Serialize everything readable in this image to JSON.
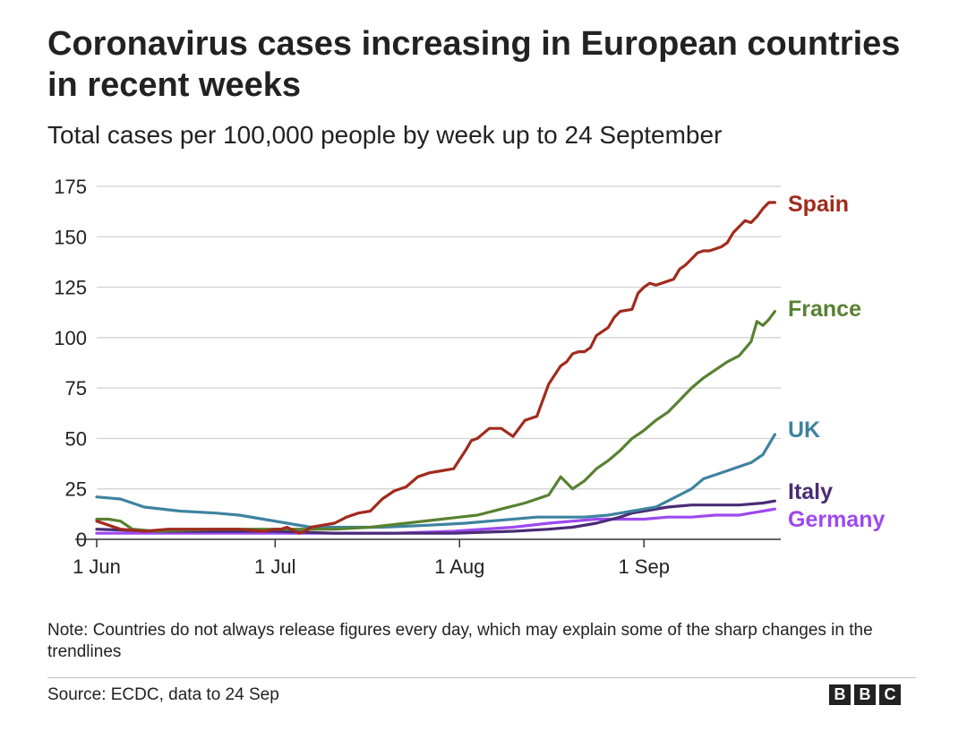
{
  "header": {
    "title": "Coronavirus cases increasing in European countries in recent weeks",
    "subtitle": "Total cases per 100,000 people by week up to 24 September"
  },
  "footer": {
    "note": "Note: Countries do not always release figures every day, which may explain some of the sharp changes in the trendlines",
    "source": "Source: ECDC, data to 24 Sep",
    "logo_letters": [
      "B",
      "B",
      "C"
    ]
  },
  "chart_data": {
    "type": "line",
    "title": "Coronavirus cases increasing in European countries in recent weeks",
    "subtitle": "Total cases per 100,000 people by week up to 24 September",
    "xlabel": "",
    "ylabel": "",
    "x_unit": "day of year 2020 (1 Jun = 0)",
    "xlim": [
      0,
      115
    ],
    "ylim": [
      0,
      175
    ],
    "yticks": [
      0,
      25,
      50,
      75,
      100,
      125,
      150,
      175
    ],
    "xticks": [
      {
        "day": 0,
        "label": "1 Jun"
      },
      {
        "day": 30,
        "label": "1 Jul"
      },
      {
        "day": 61,
        "label": "1 Aug"
      },
      {
        "day": 92,
        "label": "1 Sep"
      }
    ],
    "grid": true,
    "legend": "direct labels at line ends (right)",
    "series": [
      {
        "name": "Spain",
        "color": "#a12b1d",
        "x": [
          0,
          2,
          4,
          8,
          12,
          16,
          20,
          24,
          28,
          30,
          31,
          32,
          34,
          35,
          36,
          38,
          40,
          42,
          44,
          46,
          48,
          50,
          52,
          54,
          56,
          58,
          60,
          62,
          63,
          64,
          66,
          68,
          70,
          72,
          73,
          74,
          76,
          78,
          79,
          80,
          81,
          82,
          83,
          84,
          86,
          87,
          88,
          90,
          91,
          92,
          93,
          94,
          95,
          96,
          97,
          98,
          99,
          100,
          101,
          102,
          103,
          104,
          105,
          106,
          107,
          108,
          109,
          110,
          111,
          112,
          113,
          114
        ],
        "values": [
          9,
          7,
          5,
          4,
          5,
          5,
          5,
          5,
          4,
          5,
          5,
          6,
          3,
          4,
          6,
          7,
          8,
          11,
          13,
          14,
          20,
          24,
          26,
          31,
          33,
          34,
          35,
          44,
          49,
          50,
          55,
          55,
          51,
          59,
          60,
          61,
          77,
          86,
          88,
          92,
          93,
          93,
          95,
          101,
          105,
          110,
          113,
          114,
          122,
          125,
          127,
          126,
          127,
          128,
          129,
          134,
          136,
          139,
          142,
          143,
          143,
          144,
          145,
          147,
          152,
          155,
          158,
          157,
          160,
          164,
          167,
          167
        ]
      },
      {
        "name": "France",
        "color": "#588131",
        "x": [
          0,
          2,
          4,
          6,
          10,
          20,
          30,
          40,
          46,
          52,
          58,
          61,
          64,
          68,
          72,
          74,
          76,
          78,
          80,
          82,
          84,
          86,
          88,
          90,
          92,
          94,
          96,
          98,
          100,
          102,
          104,
          106,
          108,
          110,
          111,
          112,
          113,
          114
        ],
        "values": [
          10,
          10,
          9,
          5,
          4,
          5,
          5,
          5,
          6,
          8,
          10,
          11,
          12,
          15,
          18,
          20,
          22,
          31,
          25,
          29,
          35,
          39,
          44,
          50,
          54,
          59,
          63,
          69,
          75,
          80,
          84,
          88,
          91,
          98,
          108,
          106,
          109,
          113
        ]
      },
      {
        "name": "UK",
        "color": "#3e83a0",
        "x": [
          0,
          4,
          8,
          14,
          20,
          24,
          28,
          32,
          36,
          40,
          48,
          56,
          62,
          66,
          70,
          74,
          78,
          82,
          86,
          88,
          90,
          92,
          94,
          96,
          98,
          100,
          102,
          104,
          106,
          108,
          110,
          112,
          114
        ],
        "values": [
          21,
          20,
          16,
          14,
          13,
          12,
          10,
          8,
          6,
          6,
          6,
          7,
          8,
          9,
          10,
          11,
          11,
          11,
          12,
          13,
          14,
          15,
          16,
          19,
          22,
          25,
          30,
          32,
          34,
          36,
          38,
          42,
          52
        ]
      },
      {
        "name": "Italy",
        "color": "#4a2c75",
        "x": [
          0,
          10,
          20,
          30,
          40,
          50,
          60,
          70,
          76,
          80,
          84,
          88,
          90,
          92,
          96,
          100,
          104,
          108,
          112,
          114
        ],
        "values": [
          5,
          4,
          4,
          4,
          3,
          3,
          3,
          4,
          5,
          6,
          8,
          11,
          13,
          14,
          16,
          17,
          17,
          17,
          18,
          19
        ]
      },
      {
        "name": "Germany",
        "color": "#9d49f0",
        "x": [
          0,
          10,
          20,
          30,
          40,
          50,
          60,
          70,
          76,
          80,
          84,
          88,
          92,
          96,
          100,
          104,
          108,
          110,
          112,
          114
        ],
        "values": [
          3,
          3,
          3,
          3,
          3,
          3,
          4,
          6,
          8,
          9,
          10,
          10,
          10,
          11,
          11,
          12,
          12,
          13,
          14,
          15
        ]
      }
    ]
  }
}
